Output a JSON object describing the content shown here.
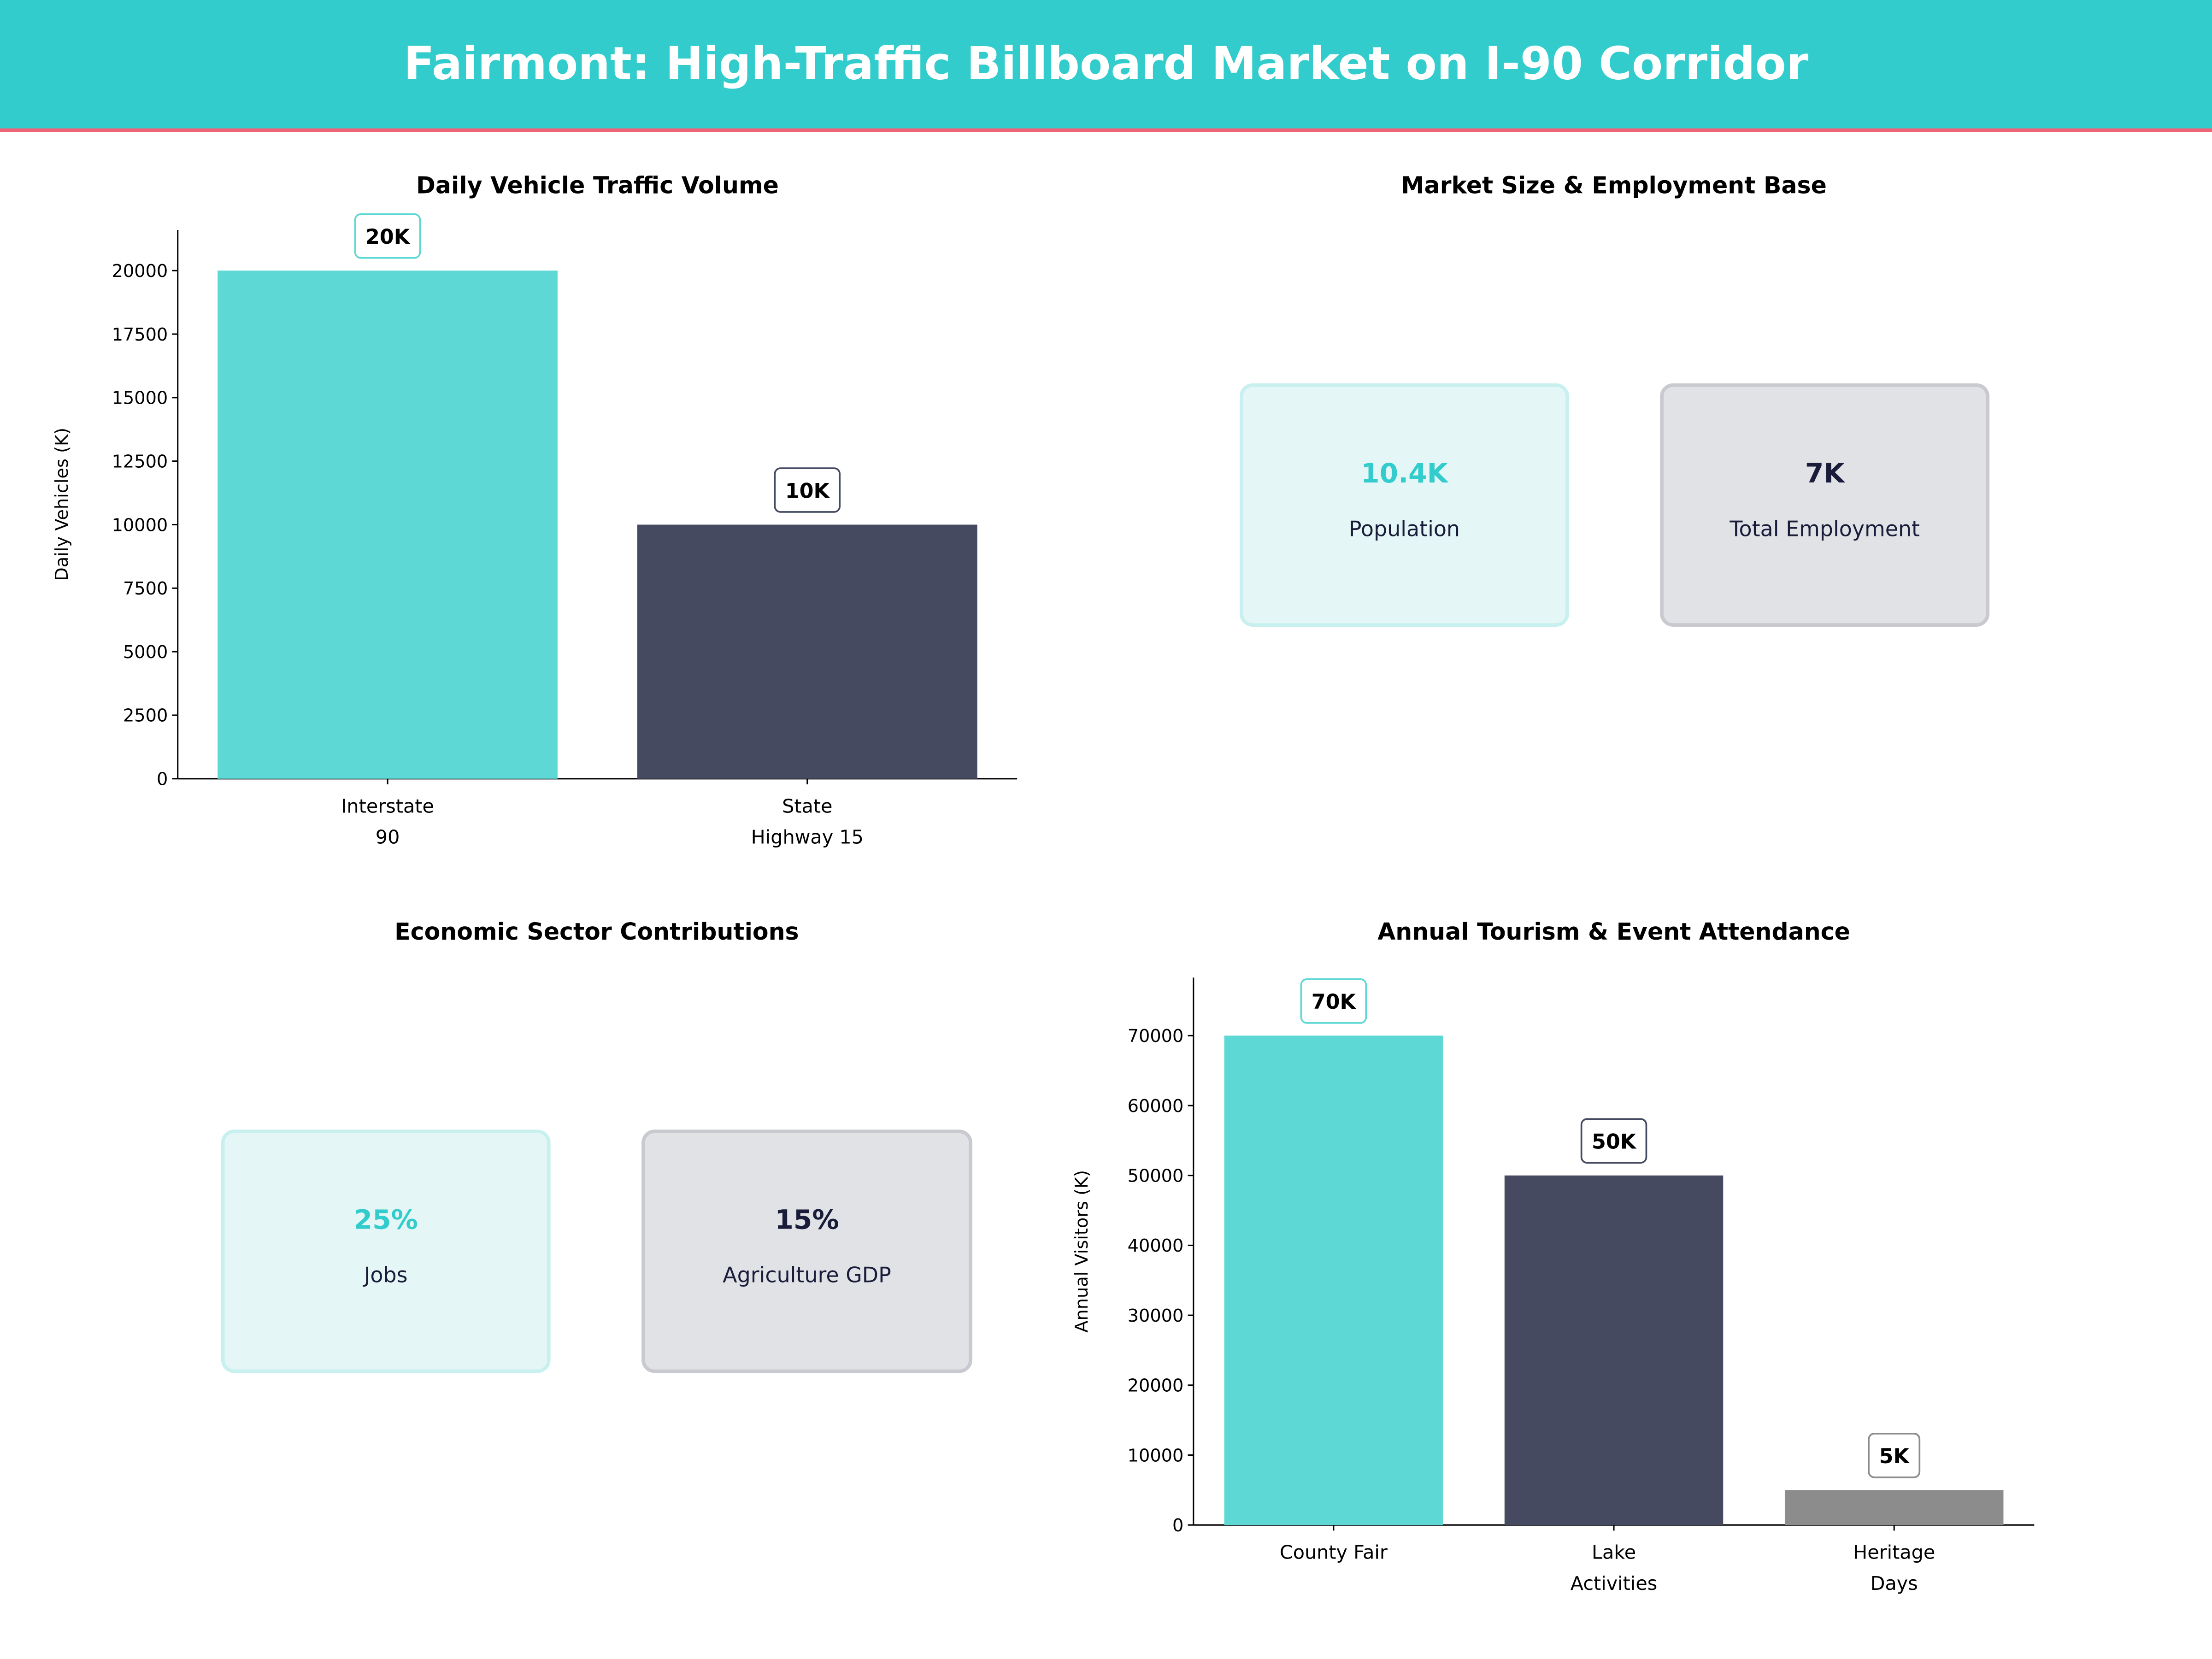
{
  "header": {
    "title": "Fairmont: High-Traffic Billboard Market on I-90 Corridor",
    "bg_color": "#33CCCC",
    "accent_line_color": "#F06478"
  },
  "colors": {
    "teal": "#5ED8D4",
    "navy": "#454A60",
    "gray": "#8C8C8C",
    "teal_text": "#33CCCC",
    "navy_text": "#1A1D3A"
  },
  "chart_data": [
    {
      "type": "bar",
      "title": "Daily Vehicle Traffic Volume",
      "ylabel": "Daily Vehicles (K)",
      "xlabel": "",
      "categories": [
        [
          "Interstate",
          "90"
        ],
        [
          "State",
          "Highway 15"
        ]
      ],
      "values": [
        20000,
        10000
      ],
      "data_labels": [
        "20K",
        "10K"
      ],
      "bar_colors": [
        "#5ED8D4",
        "#454A60"
      ],
      "ylim": [
        0,
        21600
      ],
      "yticks": [
        0,
        2500,
        5000,
        7500,
        10000,
        12500,
        15000,
        17500,
        20000
      ],
      "grid": false
    },
    {
      "type": "bar",
      "title": "Annual Tourism & Event Attendance",
      "ylabel": "Annual Visitors (K)",
      "xlabel": "",
      "categories": [
        [
          "County Fair"
        ],
        [
          "Lake",
          "Activities"
        ],
        [
          "Heritage",
          "Days"
        ]
      ],
      "values": [
        70000,
        50000,
        5000
      ],
      "data_labels": [
        "70K",
        "50K",
        "5K"
      ],
      "bar_colors": [
        "#5ED8D4",
        "#454A60",
        "#8C8C8C"
      ],
      "ylim": [
        0,
        78300
      ],
      "yticks": [
        0,
        10000,
        20000,
        30000,
        40000,
        50000,
        60000,
        70000
      ],
      "grid": false
    }
  ],
  "market": {
    "title": "Market Size & Employment Base",
    "cards": [
      {
        "value": "10.4K",
        "label": "Population"
      },
      {
        "value": "7K",
        "label": "Total Employment"
      }
    ]
  },
  "economy": {
    "title": "Economic Sector Contributions",
    "cards": [
      {
        "value": "25%",
        "label": "Jobs"
      },
      {
        "value": "15%",
        "label": "Agriculture GDP"
      }
    ]
  }
}
